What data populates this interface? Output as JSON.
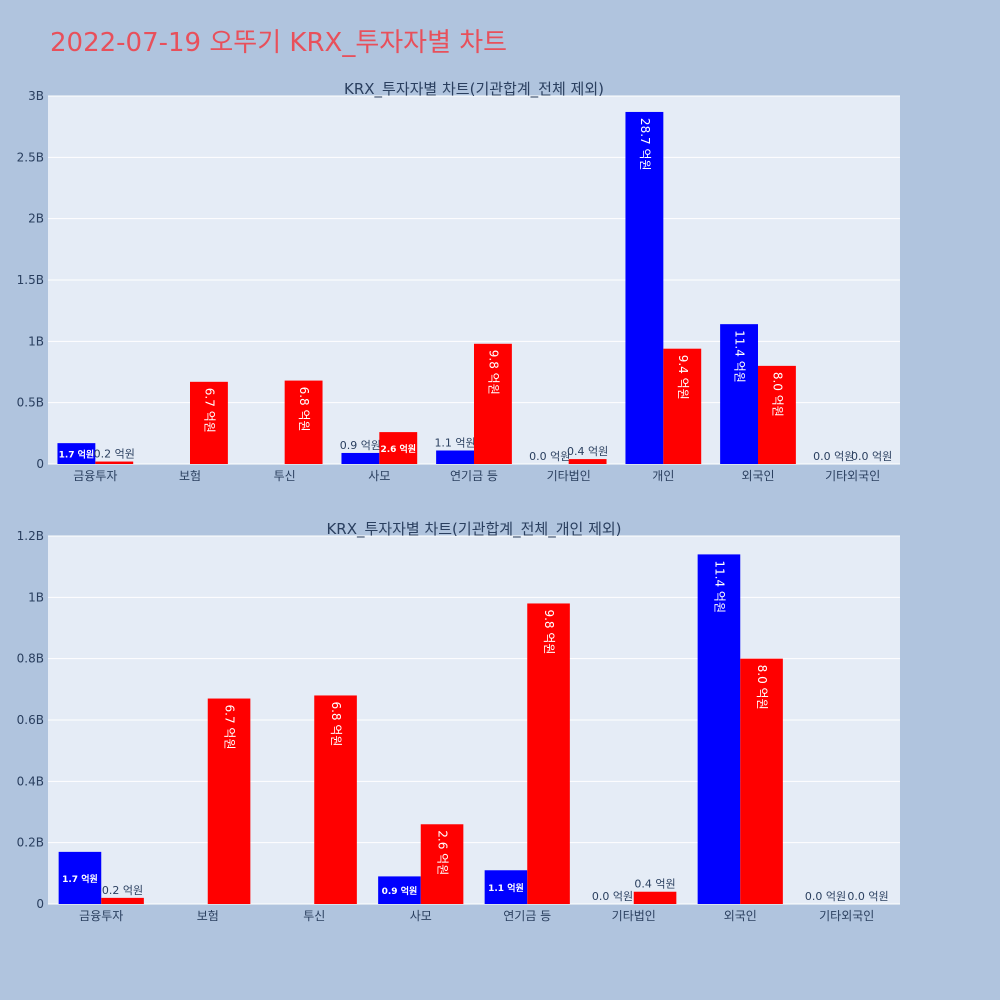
{
  "page_title": "2022-07-19 오뚜기 KRX_투자자별 차트",
  "colors": {
    "buy": "#0000ff",
    "sell": "#ff0000",
    "title": "#e8505b",
    "plot_bg": "#e5ecf6",
    "page_bg": "#b0c4de"
  },
  "chart_data": [
    {
      "type": "bar",
      "title": "KRX_투자자별 차트(기관합계_전체 제외)",
      "categories": [
        "금융투자",
        "보험",
        "투신",
        "사모",
        "연기금 등",
        "기타법인",
        "개인",
        "외국인",
        "기타외국인"
      ],
      "series": [
        {
          "color": "#0000ff",
          "values": [
            0.17,
            0,
            0,
            0.09,
            0.11,
            0.0,
            2.87,
            1.14,
            0.0
          ],
          "labels": [
            "1.7 억원",
            "",
            "",
            "0.9 억원",
            "1.1 억원",
            "0.0 억원",
            "28.7 억원",
            "11.4 억원",
            "0.0 억원"
          ]
        },
        {
          "color": "#ff0000",
          "values": [
            0.02,
            0.67,
            0.68,
            0.26,
            0.98,
            0.04,
            0.94,
            0.8,
            0.0
          ],
          "labels": [
            "0.2 억원",
            "6.7 억원",
            "6.8 억원",
            "2.6 억원",
            "9.8 억원",
            "0.4 억원",
            "9.4 억원",
            "8.0 억원",
            "0.0 억원"
          ]
        }
      ],
      "ylim": [
        0,
        3
      ],
      "yticks": [
        0,
        0.5,
        1,
        1.5,
        2,
        2.5,
        3
      ],
      "ytick_labels": [
        "0",
        "0.5B",
        "1B",
        "1.5B",
        "2B",
        "2.5B",
        "3B"
      ],
      "grid": true
    },
    {
      "type": "bar",
      "title": "KRX_투자자별 차트(기관합계_전체_개인 제외)",
      "categories": [
        "금융투자",
        "보험",
        "투신",
        "사모",
        "연기금 등",
        "기타법인",
        "외국인",
        "기타외국인"
      ],
      "series": [
        {
          "color": "#0000ff",
          "values": [
            0.17,
            0,
            0,
            0.09,
            0.11,
            0.0,
            1.14,
            0.0
          ],
          "labels": [
            "1.7 억원",
            "",
            "",
            "0.9 억원",
            "1.1 억원",
            "0.0 억원",
            "11.4 억원",
            "0.0 억원"
          ]
        },
        {
          "color": "#ff0000",
          "values": [
            0.02,
            0.67,
            0.68,
            0.26,
            0.98,
            0.04,
            0.8,
            0.0
          ],
          "labels": [
            "0.2 억원",
            "6.7 억원",
            "6.8 억원",
            "2.6 억원",
            "9.8 억원",
            "0.4 억원",
            "8.0 억원",
            "0.0 억원"
          ]
        }
      ],
      "ylim": [
        0,
        1.2
      ],
      "yticks": [
        0,
        0.2,
        0.4,
        0.6,
        0.8,
        1.0,
        1.2
      ],
      "ytick_labels": [
        "0",
        "0.2B",
        "0.4B",
        "0.6B",
        "0.8B",
        "1B",
        "1.2B"
      ],
      "grid": true
    }
  ]
}
